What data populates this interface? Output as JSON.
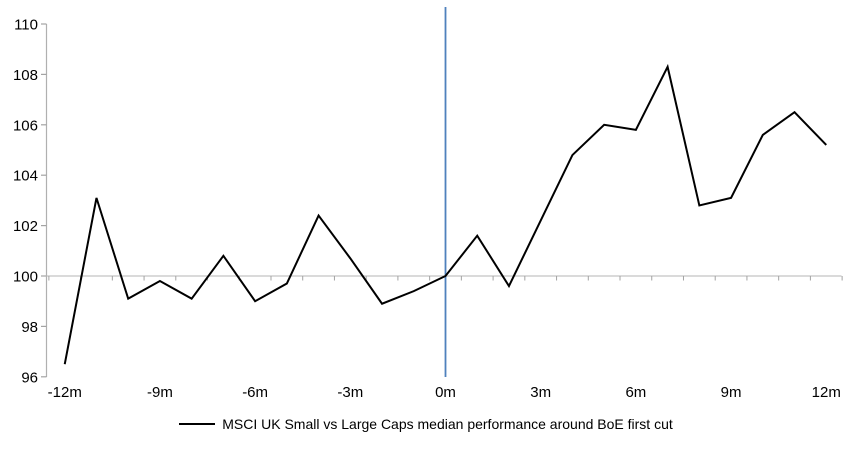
{
  "chart_data": {
    "type": "line",
    "title": "",
    "legend": "MSCI UK Small vs Large Caps median performance around BoE first cut",
    "xlabel": "",
    "ylabel": "",
    "x_unit": "months relative to first cut",
    "x": [
      -12,
      -11,
      -10,
      -9,
      -8,
      -7,
      -6,
      -5,
      -4,
      -3,
      -2,
      -1,
      0,
      1,
      2,
      3,
      4,
      5,
      6,
      7,
      8,
      9,
      10,
      11,
      12
    ],
    "series": [
      {
        "name": "MSCI UK Small vs Large Caps median performance around BoE first cut",
        "values": [
          96.5,
          103.1,
          99.1,
          99.8,
          99.1,
          100.8,
          99.0,
          99.7,
          102.4,
          100.7,
          98.9,
          99.4,
          100.0,
          101.6,
          99.6,
          102.2,
          104.8,
          106.0,
          105.8,
          108.3,
          102.8,
          103.1,
          105.6,
          106.5,
          105.2
        ]
      }
    ],
    "xlim": [
      -12.5,
      12.5
    ],
    "ylim": [
      96,
      110
    ],
    "y_ticks": [
      96,
      98,
      100,
      102,
      104,
      106,
      108,
      110
    ],
    "y_tick_labels": [
      "96",
      "98",
      "100",
      "102",
      "104",
      "106",
      "108",
      "110"
    ],
    "x_tick_months": [
      -12,
      -9,
      -6,
      -3,
      0,
      3,
      6,
      9,
      12
    ],
    "x_tick_labels": [
      "-12m",
      "-9m",
      "-6m",
      "-3m",
      "0m",
      "3m",
      "6m",
      "9m",
      "12m"
    ],
    "baseline_value": 100,
    "event_line_month": 0,
    "grid": false,
    "legend_position": "bottom",
    "colors": {
      "series_line": "#000000",
      "baseline": "#c3c3c3",
      "axis": "#b0b0b0",
      "tick": "#a3a3a3",
      "event_line": "#4f81bd",
      "text": "#000000",
      "background": "#ffffff"
    }
  }
}
